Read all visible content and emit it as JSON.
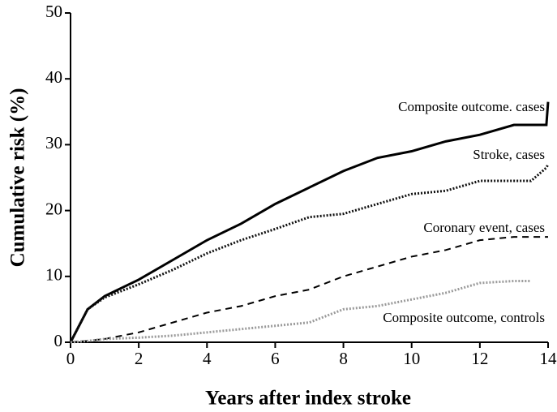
{
  "chart_data": {
    "type": "line",
    "xlabel": "Years after index stroke",
    "ylabel": "Cumulative risk (%)",
    "x": [
      0,
      0.5,
      1,
      2,
      3,
      4,
      5,
      6,
      7,
      8,
      9,
      10,
      11,
      12,
      13,
      13.5,
      13.95,
      14
    ],
    "series": [
      {
        "name": "Composite outcome. cases",
        "color": "#000000",
        "style": "solid",
        "values": [
          0,
          5,
          7,
          9.5,
          12.5,
          15.5,
          18,
          21,
          23.5,
          26,
          28,
          29,
          30.5,
          31.5,
          33,
          33,
          33,
          36.5
        ]
      },
      {
        "name": "Stroke, cases",
        "color": "#111111",
        "style": "dotted",
        "values": [
          0,
          5,
          6.8,
          8.8,
          11,
          13.5,
          15.5,
          17.2,
          19,
          19.5,
          21,
          22.5,
          23,
          24.5,
          24.5,
          24.5,
          26.5,
          27
        ]
      },
      {
        "name": "Coronary event, cases",
        "color": "#000000",
        "style": "dashed",
        "values": [
          0,
          0.2,
          0.5,
          1.5,
          3,
          4.5,
          5.5,
          7,
          8,
          10,
          11.5,
          13,
          14,
          15.5,
          16,
          16,
          16,
          16
        ]
      },
      {
        "name": "Composite outcome, controls",
        "color": "#9a9a9a",
        "style": "dotted",
        "values": [
          0,
          0.2,
          0.5,
          0.7,
          1,
          1.5,
          2,
          2.5,
          3,
          5,
          5.5,
          6.5,
          7.5,
          9,
          9.3,
          9.3,
          null,
          null
        ]
      }
    ],
    "xlim": [
      0,
      14
    ],
    "xticks": [
      0,
      2,
      4,
      6,
      8,
      10,
      12,
      14
    ],
    "ylim": [
      0,
      50
    ],
    "yticks": [
      0,
      10,
      20,
      30,
      40,
      50
    ],
    "grid": false
  }
}
